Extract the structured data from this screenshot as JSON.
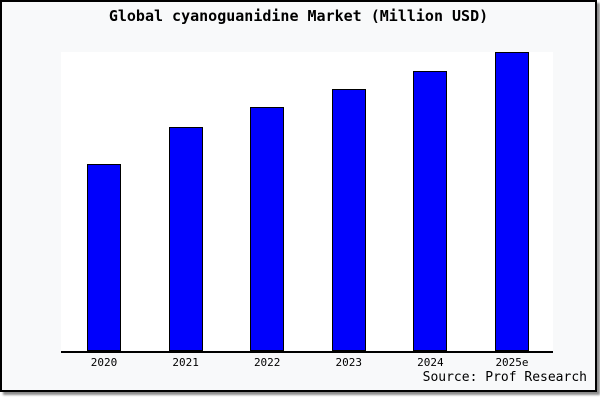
{
  "frame": {
    "background": "#f8f9fa",
    "border_color": "#000000"
  },
  "chart_data": {
    "type": "bar",
    "title": "Global cyanoguanidine Market (Million USD)",
    "categories": [
      "2020",
      "2021",
      "2022",
      "2023",
      "2024",
      "2025e"
    ],
    "values": [
      62.7,
      75.0,
      81.5,
      87.5,
      93.7,
      100
    ],
    "value_scale": "relative, normalized to 2025e = 100 (no y-axis labels shown)",
    "ylim": [
      0,
      100
    ],
    "bar_color": "#0000fc",
    "bar_edge_color": "#000000",
    "plot_background": "#ffffff",
    "grid": false,
    "legend": false,
    "xlabel": "",
    "ylabel": ""
  },
  "footer": {
    "source_label": "Source: Prof Research"
  }
}
